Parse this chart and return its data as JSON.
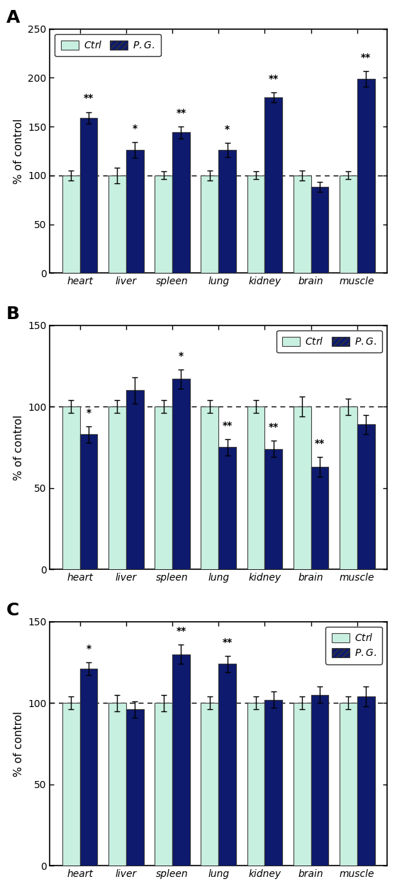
{
  "categories": [
    "heart",
    "liver",
    "spleen",
    "lung",
    "kidney",
    "brain",
    "muscle"
  ],
  "ctrl_color": "#c8f0e0",
  "pg_color": "#0d1a6e",
  "panels": [
    {
      "label": "A",
      "ylim": [
        0,
        250
      ],
      "yticks": [
        0,
        50,
        100,
        150,
        200,
        250
      ],
      "ctrl_values": [
        100,
        100,
        100,
        100,
        100,
        100,
        100
      ],
      "pg_values": [
        159,
        126,
        144,
        126,
        180,
        88,
        199
      ],
      "ctrl_errors": [
        5,
        8,
        4,
        5,
        4,
        5,
        4
      ],
      "pg_errors": [
        6,
        8,
        6,
        7,
        5,
        5,
        8
      ],
      "pg_sig": [
        "**",
        "*",
        "**",
        "*",
        "**",
        "",
        "**"
      ],
      "ctrl_sig": [
        "",
        "",
        "",
        "",
        "",
        "",
        ""
      ],
      "legend_loc": "upper left",
      "legend_ncol": 2
    },
    {
      "label": "B",
      "ylim": [
        0,
        150
      ],
      "yticks": [
        0,
        50,
        100,
        150
      ],
      "ctrl_values": [
        100,
        100,
        100,
        100,
        100,
        100,
        100
      ],
      "pg_values": [
        83,
        110,
        117,
        75,
        74,
        63,
        89
      ],
      "ctrl_errors": [
        4,
        4,
        4,
        4,
        4,
        6,
        5
      ],
      "pg_errors": [
        5,
        8,
        6,
        5,
        5,
        6,
        6
      ],
      "pg_sig": [
        "*",
        "",
        "*",
        "**",
        "**",
        "**",
        ""
      ],
      "ctrl_sig": [
        "",
        "",
        "",
        "",
        "",
        "",
        ""
      ],
      "legend_loc": "upper right",
      "legend_ncol": 2
    },
    {
      "label": "C",
      "ylim": [
        0,
        150
      ],
      "yticks": [
        0,
        50,
        100,
        150
      ],
      "ctrl_values": [
        100,
        100,
        100,
        100,
        100,
        100,
        100
      ],
      "pg_values": [
        121,
        96,
        130,
        124,
        102,
        105,
        104
      ],
      "ctrl_errors": [
        4,
        5,
        5,
        4,
        4,
        4,
        4
      ],
      "pg_errors": [
        4,
        5,
        6,
        5,
        5,
        5,
        6
      ],
      "pg_sig": [
        "*",
        "",
        "**",
        "**",
        "",
        "",
        ""
      ],
      "ctrl_sig": [
        "",
        "",
        "",
        "",
        "",
        "",
        ""
      ],
      "legend_loc": "upper right",
      "legend_ncol": 1
    }
  ]
}
